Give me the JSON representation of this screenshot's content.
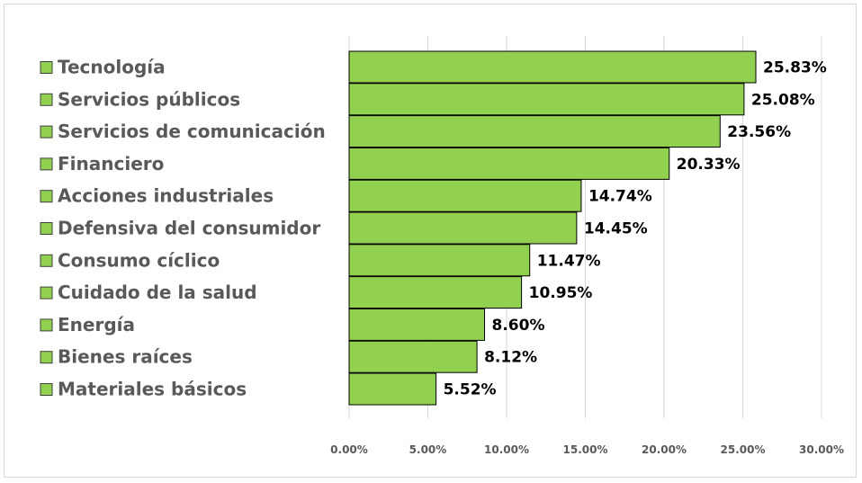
{
  "chart_data": {
    "type": "bar",
    "orientation": "horizontal",
    "categories": [
      "Tecnología",
      "Servicios públicos",
      "Servicios de comunicación",
      "Financiero",
      "Acciones industriales",
      "Defensiva del consumidor",
      "Consumo cíclico",
      "Cuidado de la salud",
      "Energía",
      "Bienes raíces",
      "Materiales básicos"
    ],
    "values": [
      25.83,
      25.08,
      23.56,
      20.33,
      14.74,
      14.45,
      11.47,
      10.95,
      8.6,
      8.12,
      5.52
    ],
    "value_labels": [
      "25.83%",
      "25.08%",
      "23.56%",
      "20.33%",
      "14.74%",
      "14.45%",
      "11.47%",
      "10.95%",
      "8.60%",
      "8.12%",
      "5.52%"
    ],
    "x_ticks": [
      "0.00%",
      "5.00%",
      "10.00%",
      "15.00%",
      "20.00%",
      "25.00%",
      "30.00%"
    ],
    "xlim": [
      0,
      30
    ],
    "grid": true,
    "legend_position": "left",
    "colors": {
      "bar_fill": "#92d050",
      "bar_stroke": "#000000",
      "grid": "#d9d9d9",
      "legend_marker": "#92d050"
    }
  }
}
